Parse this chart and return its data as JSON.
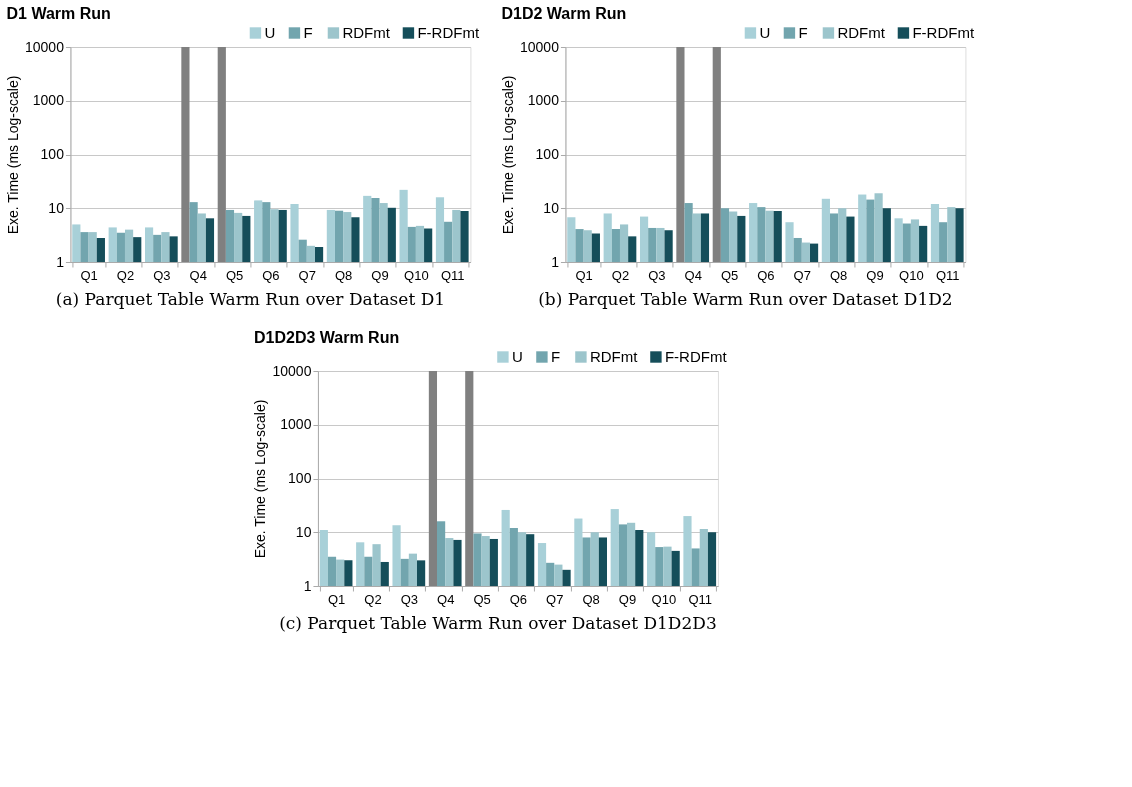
{
  "chart_data": [
    {
      "type": "bar",
      "title": "D1 Warm Run",
      "ylabel": "Exe. Time (ms Log-scale)",
      "annotations": [
        "(a) Parquet Table Warm Run over Dataset D1"
      ],
      "categories": [
        "Q1",
        "Q2",
        "Q3",
        "Q4",
        "Q5",
        "Q6",
        "Q7",
        "Q8",
        "Q9",
        "Q10",
        "Q11"
      ],
      "log": true,
      "ylim": [
        1,
        10000
      ],
      "yticks": [
        1,
        10,
        100,
        1000,
        10000
      ],
      "grid": "y",
      "legend": "top right",
      "series": [
        {
          "name": "U",
          "color": "#a8d0d8",
          "colors": [
            "#a8d0d8",
            "#a8d0d8",
            "#a8d0d8",
            "#808080",
            "#808080",
            "#a8d0d8",
            "#a8d0d8",
            "#a8d0d8",
            "#a8d0d8",
            "#a8d0d8",
            "#a8d0d8"
          ],
          "values": [
            5.0,
            4.4,
            4.4,
            10000,
            10000,
            14,
            12,
            9.3,
            17,
            22,
            16
          ]
        },
        {
          "name": "F",
          "color": "#72a5ae",
          "values": [
            3.6,
            3.5,
            3.2,
            13,
            9.3,
            13,
            2.6,
            9,
            15.5,
            4.5,
            5.6
          ]
        },
        {
          "name": "RDFmt",
          "color": "#9cc5cc",
          "values": [
            3.6,
            4,
            3.6,
            8,
            8.2,
            9.6,
            2,
            8.5,
            12.5,
            4.7,
            9.3
          ]
        },
        {
          "name": "F-RDFmt",
          "color": "#154e5a",
          "values": [
            2.8,
            2.9,
            3,
            6.5,
            7.2,
            9.3,
            1.9,
            6.8,
            10.2,
            4.2,
            8.9
          ]
        }
      ]
    },
    {
      "type": "bar",
      "title": "D1D2 Warm Run",
      "ylabel": "Exe. Time (ms Log-scale)",
      "annotations": [
        "(b) Parquet Table Warm Run over Dataset D1D2"
      ],
      "categories": [
        "Q1",
        "Q2",
        "Q3",
        "Q4",
        "Q5",
        "Q6",
        "Q7",
        "Q8",
        "Q9",
        "Q10",
        "Q11"
      ],
      "log": true,
      "ylim": [
        1,
        10000
      ],
      "yticks": [
        1,
        10,
        100,
        1000,
        10000
      ],
      "grid": "y",
      "legend": "top right",
      "series": [
        {
          "name": "U",
          "color": "#a8d0d8",
          "colors": [
            "#a8d0d8",
            "#a8d0d8",
            "#a8d0d8",
            "#808080",
            "#808080",
            "#a8d0d8",
            "#a8d0d8",
            "#a8d0d8",
            "#a8d0d8",
            "#a8d0d8",
            "#a8d0d8"
          ],
          "values": [
            6.8,
            8,
            7,
            10000,
            10000,
            12.5,
            5.5,
            15,
            18,
            6.5,
            12
          ]
        },
        {
          "name": "F",
          "color": "#72a5ae",
          "values": [
            4.1,
            4.1,
            4.3,
            12.5,
            10,
            10.5,
            2.8,
            8,
            14.5,
            5.2,
            5.5
          ]
        },
        {
          "name": "RDFmt",
          "color": "#9cc5cc",
          "values": [
            3.9,
            5,
            4.3,
            8,
            8.7,
            9,
            2.3,
            10,
            19,
            6.2,
            10.5
          ]
        },
        {
          "name": "F-RDFmt",
          "color": "#154e5a",
          "values": [
            3.4,
            3,
            3.9,
            8,
            7.2,
            8.9,
            2.2,
            7,
            10,
            4.7,
            10
          ]
        }
      ]
    },
    {
      "type": "bar",
      "title": "D1D2D3 Warm Run",
      "ylabel": "Exe. Time (ms Log-scale)",
      "annotations": [
        "(c) Parquet Table Warm Run over Dataset D1D2D3"
      ],
      "categories": [
        "Q1",
        "Q2",
        "Q3",
        "Q4",
        "Q5",
        "Q6",
        "Q7",
        "Q8",
        "Q9",
        "Q10",
        "Q11"
      ],
      "log": true,
      "ylim": [
        1,
        10000
      ],
      "yticks": [
        1,
        10,
        100,
        1000,
        10000
      ],
      "grid": "y",
      "legend": "top right",
      "series": [
        {
          "name": "U",
          "color": "#a8d0d8",
          "colors": [
            "#a8d0d8",
            "#a8d0d8",
            "#a8d0d8",
            "#808080",
            "#808080",
            "#a8d0d8",
            "#a8d0d8",
            "#a8d0d8",
            "#a8d0d8",
            "#a8d0d8",
            "#a8d0d8"
          ],
          "values": [
            11,
            6.5,
            13.5,
            10000,
            10000,
            26,
            6.3,
            18,
            27,
            10,
            20
          ]
        },
        {
          "name": "F",
          "color": "#72a5ae",
          "values": [
            3.5,
            3.5,
            3.2,
            16,
            9.5,
            12,
            2.7,
            8,
            14,
            5.3,
            5
          ]
        },
        {
          "name": "RDFmt",
          "color": "#9cc5cc",
          "values": [
            3.1,
            6,
            4,
            7.8,
            8.5,
            10,
            2.5,
            10,
            15,
            5.4,
            11.5
          ]
        },
        {
          "name": "F-RDFmt",
          "color": "#154e5a",
          "values": [
            3,
            2.8,
            3,
            7.2,
            7.5,
            9.2,
            2,
            8,
            11,
            4.5,
            10
          ]
        }
      ]
    }
  ]
}
